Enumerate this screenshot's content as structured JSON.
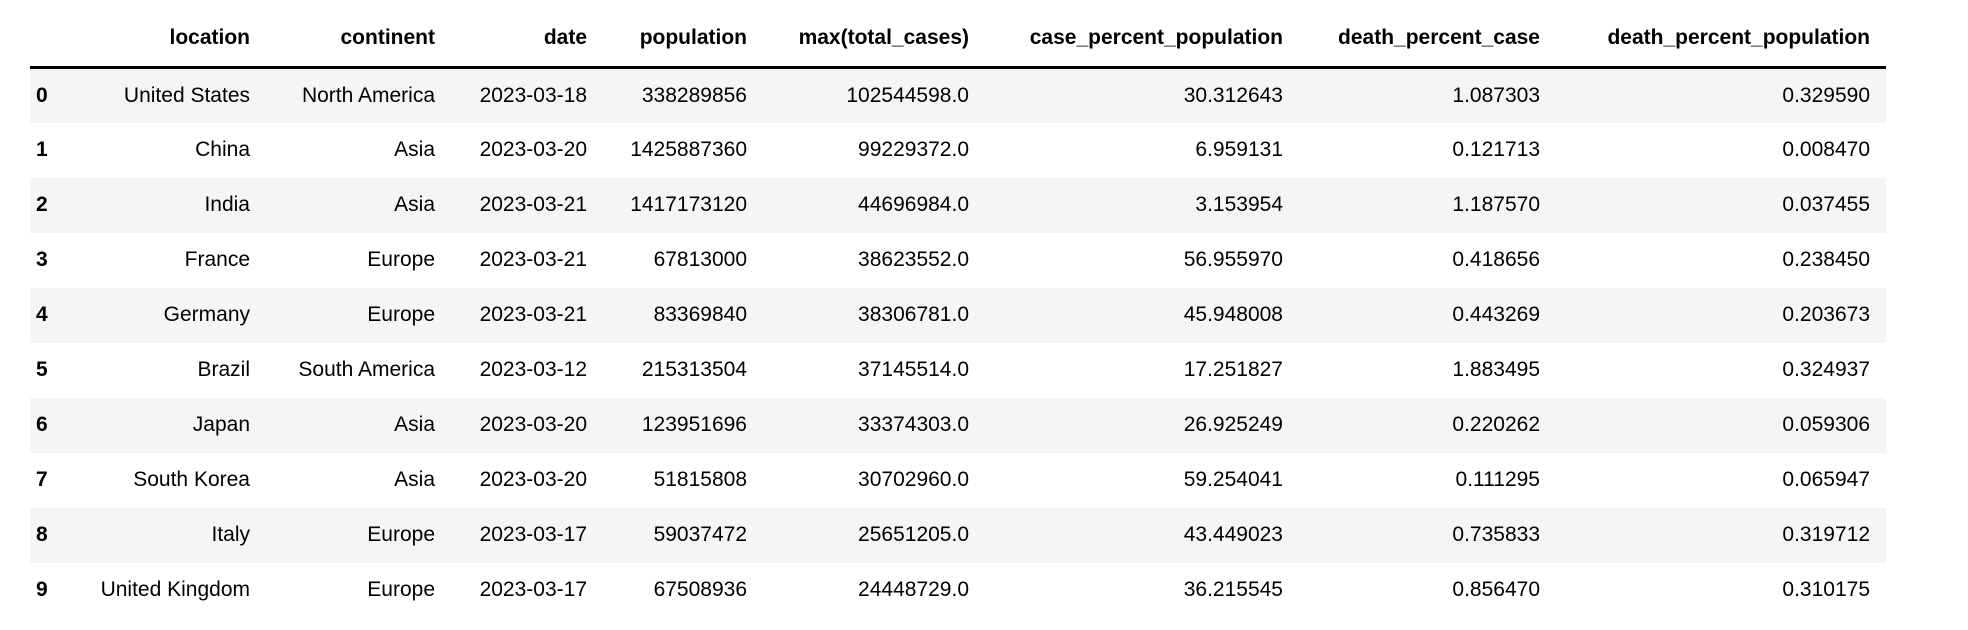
{
  "table": {
    "index_header": "",
    "columns": [
      "location",
      "continent",
      "date",
      "population",
      "max(total_cases)",
      "case_percent_population",
      "death_percent_case",
      "death_percent_population"
    ],
    "rows": [
      {
        "index": "0",
        "cells": [
          "United States",
          "North America",
          "2023-03-18",
          "338289856",
          "102544598.0",
          "30.312643",
          "1.087303",
          "0.329590"
        ]
      },
      {
        "index": "1",
        "cells": [
          "China",
          "Asia",
          "2023-03-20",
          "1425887360",
          "99229372.0",
          "6.959131",
          "0.121713",
          "0.008470"
        ]
      },
      {
        "index": "2",
        "cells": [
          "India",
          "Asia",
          "2023-03-21",
          "1417173120",
          "44696984.0",
          "3.153954",
          "1.187570",
          "0.037455"
        ]
      },
      {
        "index": "3",
        "cells": [
          "France",
          "Europe",
          "2023-03-21",
          "67813000",
          "38623552.0",
          "56.955970",
          "0.418656",
          "0.238450"
        ]
      },
      {
        "index": "4",
        "cells": [
          "Germany",
          "Europe",
          "2023-03-21",
          "83369840",
          "38306781.0",
          "45.948008",
          "0.443269",
          "0.203673"
        ]
      },
      {
        "index": "5",
        "cells": [
          "Brazil",
          "South America",
          "2023-03-12",
          "215313504",
          "37145514.0",
          "17.251827",
          "1.883495",
          "0.324937"
        ]
      },
      {
        "index": "6",
        "cells": [
          "Japan",
          "Asia",
          "2023-03-20",
          "123951696",
          "33374303.0",
          "26.925249",
          "0.220262",
          "0.059306"
        ]
      },
      {
        "index": "7",
        "cells": [
          "South Korea",
          "Asia",
          "2023-03-20",
          "51815808",
          "30702960.0",
          "59.254041",
          "0.111295",
          "0.065947"
        ]
      },
      {
        "index": "8",
        "cells": [
          "Italy",
          "Europe",
          "2023-03-17",
          "59037472",
          "25651205.0",
          "43.449023",
          "0.735833",
          "0.319712"
        ]
      },
      {
        "index": "9",
        "cells": [
          "United Kingdom",
          "Europe",
          "2023-03-17",
          "67508936",
          "24448729.0",
          "36.215545",
          "0.856470",
          "0.310175"
        ]
      }
    ]
  },
  "colors": {
    "row_alt_bg": "#f5f5f5",
    "header_rule": "#000000",
    "text": "#000000",
    "page_bg": "#ffffff"
  }
}
